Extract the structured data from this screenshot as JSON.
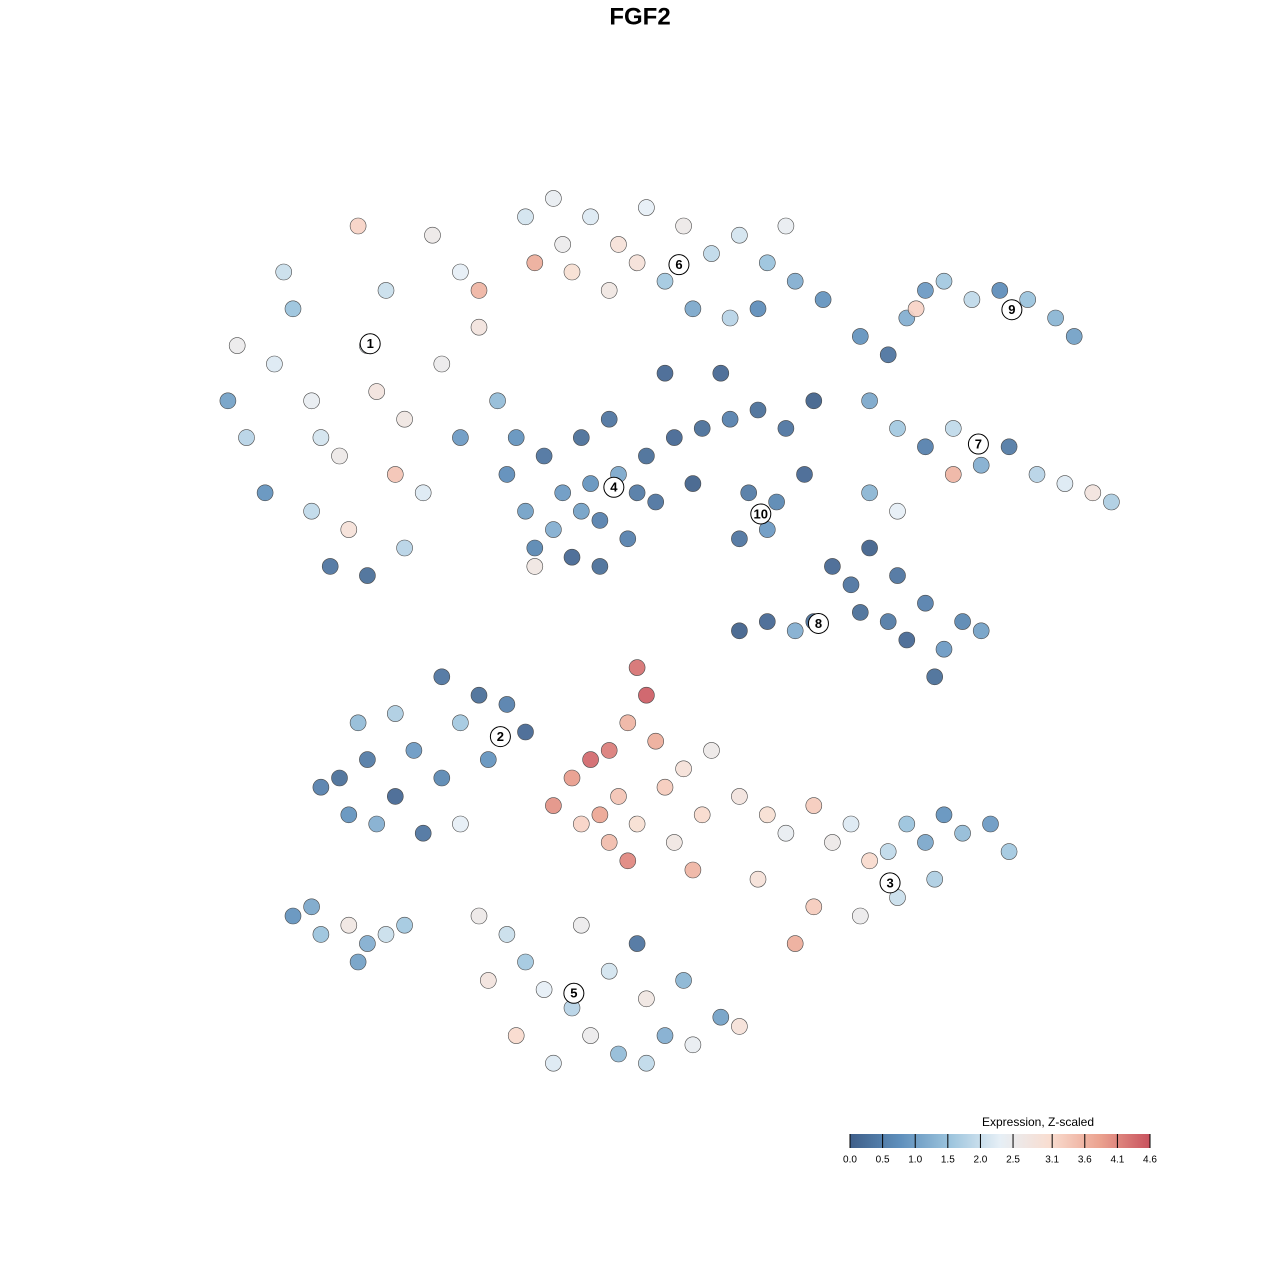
{
  "chart_data": {
    "type": "scatter",
    "title": "FGF2",
    "xlim": [
      0,
      100
    ],
    "ylim": [
      0,
      100
    ],
    "x": [
      3,
      5,
      8,
      10,
      12,
      15,
      18,
      20,
      22,
      24,
      16,
      12,
      26,
      28,
      30,
      32,
      14,
      18,
      22,
      7,
      25,
      17,
      35,
      9,
      28,
      4,
      21,
      30,
      13,
      19,
      38,
      42,
      45,
      48,
      52,
      55,
      58,
      61,
      64,
      67,
      40,
      44,
      50,
      53,
      57,
      60,
      36,
      47,
      63,
      39,
      33,
      35,
      37,
      39,
      41,
      43,
      45,
      47,
      36,
      40,
      42,
      44,
      38,
      46,
      48,
      34,
      41,
      43,
      36,
      49,
      51,
      54,
      57,
      60,
      63,
      59,
      61,
      62,
      58,
      65,
      53,
      56,
      50,
      66,
      71,
      74,
      76,
      78,
      80,
      83,
      86,
      89,
      92,
      94,
      72,
      75,
      78,
      81,
      84,
      87,
      90,
      93,
      96,
      98,
      81,
      77,
      72,
      75,
      68,
      70,
      72,
      71,
      74,
      76,
      78,
      80,
      82,
      84,
      66,
      64,
      61,
      58,
      75,
      79,
      15,
      18,
      21,
      23,
      26,
      19,
      16,
      24,
      28,
      30,
      33,
      35,
      17,
      21,
      26,
      31,
      13,
      28,
      40,
      42,
      44,
      46,
      48,
      45,
      47,
      50,
      52,
      43,
      41,
      49,
      51,
      54,
      38,
      47,
      46,
      53,
      55,
      44,
      58,
      61,
      63,
      66,
      68,
      70,
      72,
      74,
      76,
      78,
      80,
      82,
      85,
      87,
      75,
      71,
      66,
      64,
      60,
      79,
      30,
      33,
      35,
      37,
      40,
      42,
      45,
      48,
      50,
      53,
      56,
      38,
      34,
      31,
      44,
      48,
      52,
      47,
      41,
      58,
      10,
      12,
      13,
      16,
      18,
      20,
      22,
      17
    ],
    "y": [
      76,
      72,
      80,
      86,
      76,
      70,
      82,
      88,
      74,
      66,
      62,
      64,
      80,
      90,
      84,
      76,
      58,
      57,
      60,
      66,
      94,
      95,
      96,
      90,
      72,
      82,
      68,
      88,
      72,
      77,
      98,
      96,
      93,
      97,
      95,
      92,
      94,
      91,
      89,
      87,
      90,
      88,
      89,
      86,
      85,
      86,
      91,
      91,
      95,
      93,
      68,
      64,
      70,
      66,
      72,
      63,
      68,
      66,
      60,
      59,
      67,
      74,
      62,
      61,
      70,
      72,
      64,
      58,
      58,
      65,
      72,
      73,
      74,
      75,
      73,
      66,
      62,
      65,
      61,
      68,
      67,
      79,
      79,
      76,
      83,
      81,
      85,
      88,
      89,
      87,
      88,
      87,
      85,
      83,
      76,
      73,
      71,
      73,
      69,
      71,
      68,
      67,
      66,
      65,
      68,
      86,
      66,
      64,
      58,
      56,
      60,
      53,
      52,
      50,
      54,
      49,
      52,
      51,
      52,
      51,
      52,
      51,
      57,
      46,
      35,
      37,
      33,
      38,
      35,
      30,
      31,
      29,
      41,
      44,
      43,
      40,
      41,
      42,
      46,
      37,
      34,
      30,
      35,
      37,
      38,
      41,
      44,
      33,
      30,
      34,
      36,
      31,
      30,
      39,
      28,
      31,
      32,
      47,
      26,
      25,
      38,
      28,
      33,
      31,
      29,
      32,
      28,
      30,
      26,
      27,
      30,
      28,
      31,
      29,
      30,
      27,
      22,
      20,
      21,
      17,
      24,
      24,
      20,
      18,
      15,
      12,
      10,
      7,
      5,
      4,
      7,
      6,
      9,
      4,
      7,
      13,
      14,
      11,
      13,
      17,
      19,
      8,
      20,
      21,
      18,
      19,
      17,
      18,
      19,
      15
    ],
    "values": [
      1.0,
      1.8,
      2.2,
      1.5,
      2.4,
      2.6,
      2.3,
      2.0,
      2.7,
      2.2,
      2.9,
      1.9,
      2.5,
      2.3,
      2.8,
      1.4,
      0.3,
      0.2,
      1.8,
      0.8,
      2.6,
      3.2,
      2.1,
      2.0,
      0.9,
      2.5,
      3.4,
      3.6,
      2.1,
      2.8,
      2.4,
      2.2,
      2.9,
      2.3,
      2.6,
      1.9,
      2.1,
      1.5,
      1.2,
      0.8,
      3.0,
      2.7,
      1.6,
      1.1,
      1.8,
      0.7,
      3.7,
      2.9,
      2.4,
      2.5,
      0.7,
      1.0,
      0.3,
      0.9,
      0.2,
      0.5,
      1.1,
      0.4,
      0.6,
      0.1,
      0.8,
      0.3,
      1.2,
      0.5,
      0.2,
      0.8,
      1.0,
      0.2,
      2.7,
      0.3,
      0.1,
      0.2,
      0.5,
      0.2,
      0.3,
      0.4,
      0.9,
      0.6,
      0.3,
      0.1,
      0.0,
      0.1,
      0.1,
      0.0,
      0.8,
      0.3,
      1.2,
      0.9,
      1.6,
      1.9,
      0.7,
      1.5,
      1.3,
      1.0,
      1.1,
      1.6,
      0.5,
      1.9,
      1.2,
      0.4,
      1.8,
      2.2,
      2.8,
      1.7,
      3.6,
      3.2,
      1.3,
      2.3,
      0.1,
      0.3,
      0.0,
      0.2,
      0.4,
      0.1,
      0.5,
      0.9,
      0.6,
      1.0,
      0.2,
      1.2,
      0.1,
      0.0,
      0.3,
      0.2,
      0.2,
      0.4,
      0.1,
      0.9,
      0.6,
      1.2,
      0.8,
      0.3,
      1.6,
      0.2,
      0.5,
      0.1,
      1.4,
      1.7,
      0.3,
      0.8,
      0.5,
      2.3,
      3.9,
      4.4,
      4.2,
      3.6,
      4.5,
      3.4,
      3.0,
      3.3,
      2.9,
      3.8,
      3.2,
      3.7,
      2.7,
      3.1,
      4.0,
      4.3,
      4.1,
      3.6,
      2.6,
      3.5,
      2.8,
      3.0,
      2.4,
      3.3,
      2.6,
      2.2,
      3.1,
      1.9,
      1.5,
      1.1,
      0.8,
      1.4,
      0.9,
      1.6,
      2.0,
      2.5,
      3.3,
      3.7,
      2.9,
      1.7,
      2.6,
      2.0,
      1.6,
      2.3,
      1.8,
      2.5,
      1.4,
      1.9,
      1.2,
      2.4,
      1.0,
      2.2,
      3.1,
      2.8,
      2.1,
      2.7,
      1.3,
      0.3,
      2.5,
      2.9,
      0.8,
      1.1,
      1.5,
      2.7,
      1.2,
      2.0,
      1.6,
      1.0
    ],
    "clusters": [
      {
        "label": "1",
        "x": 18.3,
        "y": 82.2
      },
      {
        "label": "2",
        "x": 32.3,
        "y": 39.5
      },
      {
        "label": "3",
        "x": 74.2,
        "y": 23.6
      },
      {
        "label": "4",
        "x": 44.5,
        "y": 66.6
      },
      {
        "label": "5",
        "x": 40.2,
        "y": 11.6
      },
      {
        "label": "6",
        "x": 51.5,
        "y": 90.8
      },
      {
        "label": "7",
        "x": 83.7,
        "y": 71.3
      },
      {
        "label": "8",
        "x": 66.5,
        "y": 51.8
      },
      {
        "label": "9",
        "x": 87.3,
        "y": 85.9
      },
      {
        "label": "10",
        "x": 60.3,
        "y": 63.7
      }
    ],
    "colorbar": {
      "title": "Expression, Z-scaled",
      "lim": [
        0,
        4.6
      ],
      "ticks": [
        {
          "value": 0,
          "label": "0.0"
        },
        0.5,
        {
          "value": 1,
          "label": "1.0"
        },
        1.5,
        {
          "value": 2,
          "label": "2.0"
        },
        2.5,
        3.1,
        3.6,
        4.1,
        4.6
      ],
      "colors": [
        "#3e5f8a",
        "#5e8fbc",
        "#9cc4dd",
        "#e6eff6",
        "#f9ddd0",
        "#eba28f",
        "#c8525e"
      ]
    }
  }
}
